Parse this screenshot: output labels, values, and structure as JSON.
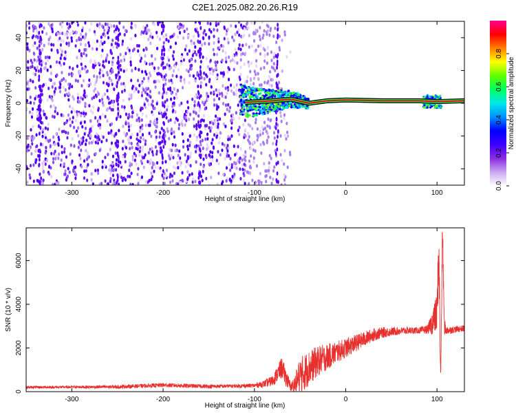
{
  "figure": {
    "title": "C2E1.2025.082.20.26.R19"
  },
  "chart_data": [
    {
      "type": "heatmap",
      "xlabel": "Height of straight line (km)",
      "ylabel": "Frequency (Hz)",
      "xlim": [
        -350,
        130
      ],
      "ylim": [
        -50,
        50
      ],
      "x_ticks": [
        -300,
        -200,
        -100,
        0,
        100
      ],
      "y_ticks": [
        -40,
        -20,
        0,
        20,
        40
      ],
      "colorbar": {
        "label": "Normalized spectral amplitude",
        "range": [
          0,
          1
        ],
        "ticks": [
          0.0,
          0.2,
          0.4,
          0.6,
          0.8
        ],
        "colormap": [
          "#ffffff",
          "#c8a8f0",
          "#8a2be2",
          "#3c00ff",
          "#0000ff",
          "#0090ff",
          "#00e8e8",
          "#00ff60",
          "#60ff00",
          "#ffff00",
          "#ff8000",
          "#ff0000",
          "#ff0090"
        ]
      },
      "dominant_frequency_line": {
        "points": [
          [
            -110,
            0.5
          ],
          [
            -80,
            1.5
          ],
          [
            -60,
            2.5
          ],
          [
            -40,
            0.0
          ],
          [
            -20,
            1.5
          ],
          [
            0,
            2.0
          ],
          [
            40,
            1.5
          ],
          [
            80,
            1.5
          ],
          [
            100,
            1.0
          ],
          [
            130,
            1.5
          ]
        ],
        "color": "#ff0000",
        "outline": "#000000"
      },
      "noise_region": {
        "x_range": [
          -350,
          -100
        ],
        "y_range": [
          -50,
          50
        ],
        "amplitude_level": 0.15,
        "color": "#6a20e8"
      },
      "bright_band_x": [
        -335,
        -250,
        -200,
        -160,
        -75
      ]
    },
    {
      "type": "line",
      "xlabel": "Height of straight line (km)",
      "ylabel": "SNR (10 * v/v)",
      "xlim": [
        -350,
        130
      ],
      "ylim": [
        0,
        7500
      ],
      "x_ticks": [
        -300,
        -200,
        -100,
        0,
        100
      ],
      "y_ticks": [
        0,
        2000,
        4000,
        6000
      ],
      "series": [
        {
          "color": "#e8302e",
          "x": [
            -350,
            -300,
            -250,
            -200,
            -150,
            -120,
            -100,
            -90,
            -80,
            -75,
            -70,
            -65,
            -60,
            -55,
            -50,
            -40,
            -30,
            -20,
            -10,
            0,
            10,
            20,
            30,
            40,
            50,
            60,
            70,
            80,
            90,
            95,
            100,
            102,
            104,
            106,
            108,
            110,
            120,
            130
          ],
          "y": [
            200,
            210,
            220,
            300,
            240,
            260,
            280,
            350,
            500,
            800,
            1100,
            600,
            200,
            400,
            700,
            1100,
            1400,
            1600,
            1800,
            2000,
            2200,
            2400,
            2600,
            2700,
            2750,
            2780,
            2800,
            2800,
            2850,
            3200,
            3600,
            6500,
            500,
            7400,
            3000,
            2800,
            2850,
            2900
          ],
          "noise_amplitude": [
            60,
            60,
            80,
            100,
            90,
            80,
            100,
            150,
            250,
            350,
            500,
            400,
            200,
            500,
            900,
            800,
            700,
            600,
            500,
            450,
            400,
            350,
            300,
            250,
            200,
            180,
            160,
            150,
            200,
            600,
            900,
            1500,
            300,
            800,
            400,
            200,
            150,
            150
          ]
        }
      ]
    }
  ]
}
